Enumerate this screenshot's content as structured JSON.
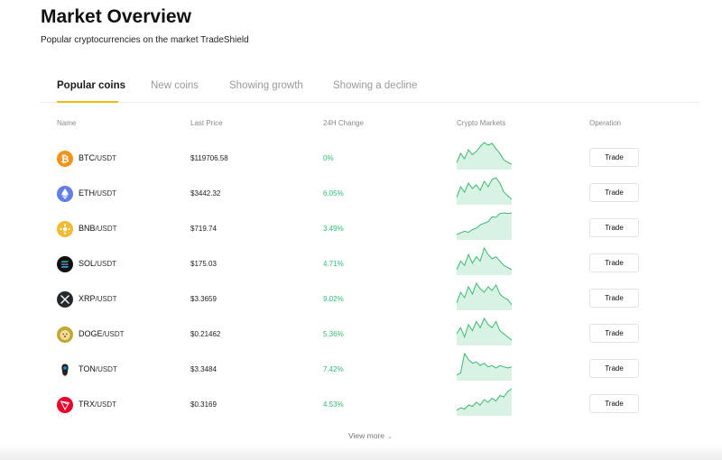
{
  "header": {
    "title": "Market Overview",
    "subtitle": "Popular cryptocurrencies on the market TradeShield"
  },
  "tabs": [
    {
      "label": "Popular coins",
      "active": true
    },
    {
      "label": "New coins",
      "active": false
    },
    {
      "label": "Showing growth",
      "active": false
    },
    {
      "label": "Showing a decline",
      "active": false
    }
  ],
  "columns": {
    "name": "Name",
    "last_price": "Last Price",
    "change_24h": "24H Change",
    "crypto_markets": "Crypto Markets",
    "operation": "Operation"
  },
  "rows": [
    {
      "symbol": "BTC",
      "quote": "/USDT",
      "price": "$119706.58",
      "change": "0%",
      "trade_label": "Trade",
      "icon": "bitcoin-icon",
      "icon_color": "#f7931a",
      "spark": [
        20,
        55,
        35,
        68,
        50,
        62,
        80,
        95,
        85,
        92,
        72,
        55,
        30,
        22,
        15
      ]
    },
    {
      "symbol": "ETH",
      "quote": "/USDT",
      "price": "$3442.32",
      "change": "6.05%",
      "trade_label": "Trade",
      "icon": "ethereum-icon",
      "icon_color": "#627eea",
      "spark": [
        30,
        60,
        45,
        70,
        55,
        65,
        50,
        75,
        60,
        80,
        85,
        70,
        45,
        35,
        25
      ]
    },
    {
      "symbol": "BNB",
      "quote": "/USDT",
      "price": "$719.74",
      "change": "3.49%",
      "trade_label": "Trade",
      "icon": "bnb-icon",
      "icon_color": "#f3ba2f",
      "spark": [
        15,
        20,
        25,
        22,
        30,
        35,
        45,
        50,
        55,
        70,
        68,
        80,
        82,
        80,
        82
      ]
    },
    {
      "symbol": "SOL",
      "quote": "/USDT",
      "price": "$175.03",
      "change": "4.71%",
      "trade_label": "Trade",
      "icon": "solana-icon",
      "icon_color": "#111111",
      "spark": [
        20,
        40,
        30,
        55,
        35,
        50,
        40,
        70,
        55,
        45,
        50,
        40,
        30,
        25,
        20
      ]
    },
    {
      "symbol": "XRP",
      "quote": "/USDT",
      "price": "$3.3659",
      "change": "9.02%",
      "trade_label": "Trade",
      "icon": "xrp-icon",
      "icon_color": "#23292f",
      "spark": [
        15,
        45,
        30,
        60,
        40,
        70,
        55,
        45,
        60,
        50,
        65,
        40,
        30,
        25,
        10
      ]
    },
    {
      "symbol": "DOGE",
      "quote": "/USDT",
      "price": "$0.21462",
      "change": "5.36%",
      "trade_label": "Trade",
      "icon": "dogecoin-icon",
      "icon_color": "#c2a633",
      "spark": [
        35,
        45,
        30,
        50,
        40,
        55,
        45,
        60,
        50,
        45,
        55,
        40,
        35,
        30,
        25
      ]
    },
    {
      "symbol": "TON",
      "quote": "/USDT",
      "price": "$3.3484",
      "change": "7.42%",
      "trade_label": "Trade",
      "icon": "toncoin-icon",
      "icon_color": "#0098ea",
      "spark": [
        5,
        15,
        95,
        70,
        55,
        60,
        45,
        55,
        40,
        45,
        35,
        45,
        40,
        35,
        40
      ]
    },
    {
      "symbol": "TRX",
      "quote": "/USDT",
      "price": "$0.3169",
      "change": "4.53%",
      "trade_label": "Trade",
      "icon": "tron-icon",
      "icon_color": "#eb0029",
      "spark": [
        15,
        25,
        20,
        35,
        30,
        45,
        35,
        55,
        45,
        60,
        50,
        70,
        65,
        85,
        95
      ]
    }
  ],
  "footer": {
    "view_more": "View more"
  },
  "colors": {
    "accent": "#f0b90b",
    "positive": "#2fbd73",
    "spark_fill": "#d8f3e4",
    "spark_line": "#38b971"
  }
}
